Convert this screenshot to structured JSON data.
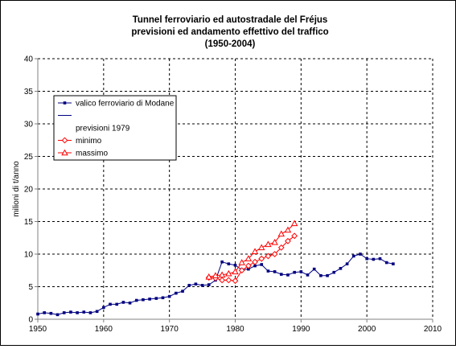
{
  "chart_data": {
    "type": "line",
    "title_lines": [
      "Tunnel ferroviario ed autostradale del Fréjus",
      "previsioni ed andamento effettivo del traffico",
      "(1950-2004)"
    ],
    "xlabel": "",
    "ylabel": "milioni di t/anno",
    "xlim": [
      1950,
      2010
    ],
    "ylim": [
      0,
      40
    ],
    "x_ticks": [
      1950,
      1960,
      1970,
      1980,
      1990,
      2000,
      2010
    ],
    "y_ticks": [
      0,
      5,
      10,
      15,
      20,
      25,
      30,
      35,
      40
    ],
    "grid": "dashed",
    "legend_position": "top-left",
    "legend": {
      "entries": [
        "valico ferroviario di Modane",
        "",
        "previsioni 1979",
        "minimo",
        "massimo"
      ]
    },
    "series": [
      {
        "name": "valico ferroviario di Modane",
        "color": "#000080",
        "marker": "square",
        "x": [
          1950,
          1951,
          1952,
          1953,
          1954,
          1955,
          1956,
          1957,
          1958,
          1959,
          1960,
          1961,
          1962,
          1963,
          1964,
          1965,
          1966,
          1967,
          1968,
          1969,
          1970,
          1971,
          1972,
          1973,
          1974,
          1975,
          1976,
          1977,
          1978,
          1979,
          1980,
          1981,
          1982,
          1983,
          1984,
          1985,
          1986,
          1987,
          1988,
          1989,
          1990,
          1991,
          1992,
          1993,
          1994,
          1995,
          1996,
          1997,
          1998,
          1999,
          2000,
          2001,
          2002,
          2003,
          2004
        ],
        "values": [
          0.8,
          1.0,
          0.9,
          0.7,
          1.0,
          1.1,
          1.0,
          1.1,
          1.0,
          1.2,
          1.8,
          2.3,
          2.3,
          2.6,
          2.5,
          2.9,
          3.0,
          3.1,
          3.2,
          3.3,
          3.5,
          4.0,
          4.3,
          5.2,
          5.4,
          5.2,
          5.3,
          6.0,
          8.8,
          8.5,
          8.3,
          7.6,
          7.7,
          8.2,
          8.4,
          7.4,
          7.3,
          6.9,
          6.8,
          7.2,
          7.3,
          6.8,
          7.7,
          6.7,
          6.7,
          7.2,
          7.8,
          8.5,
          9.7,
          10.0,
          9.3,
          9.2,
          9.3,
          8.7,
          8.5
        ]
      },
      {
        "name": "minimo",
        "color": "#ff0000",
        "marker": "diamond",
        "x": [
          1976,
          1977,
          1978,
          1979,
          1980,
          1981,
          1982,
          1983,
          1984,
          1985,
          1986,
          1987,
          1988,
          1989
        ],
        "values": [
          6.4,
          6.3,
          6.0,
          6.0,
          5.9,
          7.5,
          8.2,
          8.8,
          9.3,
          9.7,
          10.0,
          11.0,
          12.0,
          12.8
        ]
      },
      {
        "name": "massimo",
        "color": "#ff0000",
        "marker": "triangle",
        "x": [
          1976,
          1977,
          1978,
          1979,
          1980,
          1981,
          1982,
          1983,
          1984,
          1985,
          1986,
          1987,
          1988,
          1989
        ],
        "values": [
          6.5,
          6.7,
          6.8,
          7.0,
          7.3,
          8.7,
          9.3,
          10.4,
          11.0,
          11.5,
          11.8,
          13.1,
          13.7,
          14.7
        ]
      }
    ]
  }
}
